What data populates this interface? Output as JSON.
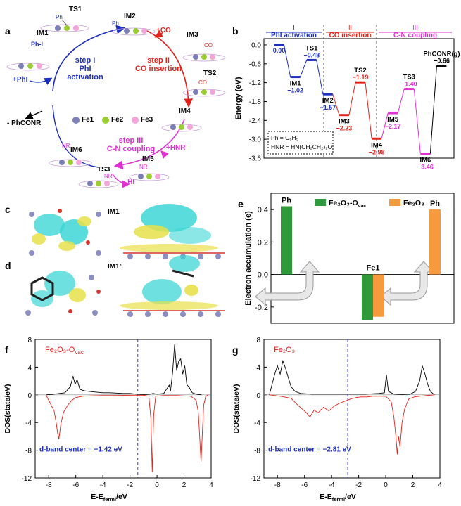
{
  "panel_letters": {
    "a": "a",
    "b": "b",
    "c": "c",
    "d": "d",
    "e": "e",
    "f": "f",
    "g": "g"
  },
  "colors": {
    "blue": "#1c2fbf",
    "red": "#e3231b",
    "magenta": "#e032d2",
    "green": "#2e9a3a",
    "orange": "#f79a3e",
    "cyan": "#3ed6d6",
    "yellow": "#e8e04a"
  },
  "cycle": {
    "states": {
      "ts1": "TS1",
      "im2": "IM2",
      "im1": "IM1",
      "im3": "IM3",
      "ts2": "TS2",
      "im4": "IM4",
      "im5": "IM5",
      "ts3": "TS3",
      "im6": "IM6"
    },
    "step1": {
      "title": "step I",
      "sub": "PhI activation"
    },
    "step2": {
      "title": "step II",
      "sub": "CO insertion"
    },
    "step3": {
      "title": "step III",
      "sub": "C-N coupling"
    },
    "inputs": {
      "co": "+CO",
      "phi": "+PhI",
      "hnr": "+HNR",
      "hi": "- HI",
      "product": "- PhCONR"
    },
    "legend": {
      "fe1": "Fe1",
      "fe2": "Fe2",
      "fe3": "Fe3"
    },
    "atoms": {
      "ph": "Ph",
      "i": "I",
      "phi": "Ph-I",
      "co": "CO",
      "nr": "NR"
    }
  },
  "energy_chart": {
    "chart_data": {
      "type": "line",
      "title": "",
      "ylabel": "Energy (eV)",
      "ylim": [
        -3.6,
        0.2
      ],
      "yticks": [
        "0.0",
        "-0.6",
        "-1.2",
        "-1.8",
        "-2.4",
        "-3.0",
        "-3.6"
      ],
      "states": [
        {
          "name": "",
          "value": 0.0,
          "label": "0.00",
          "color": "#1c2fbf"
        },
        {
          "name": "IM1",
          "value": -1.02,
          "label": "−1.02",
          "color": "#1c2fbf"
        },
        {
          "name": "TS1",
          "value": -0.48,
          "label": "−0.48",
          "color": "#1c2fbf"
        },
        {
          "name": "IM2",
          "value": -1.57,
          "label": "−1.57",
          "color": "#1c2fbf"
        },
        {
          "name": "IM3",
          "value": -2.23,
          "label": "−2.23",
          "color": "#e3231b"
        },
        {
          "name": "TS2",
          "value": -1.19,
          "label": "−1.19",
          "color": "#e3231b"
        },
        {
          "name": "IM4",
          "value": -2.98,
          "label": "−2.98",
          "color": "#e3231b"
        },
        {
          "name": "IM5",
          "value": -2.17,
          "label": "−2.17",
          "color": "#e032d2"
        },
        {
          "name": "TS3",
          "value": -1.4,
          "label": "−1.40",
          "color": "#e032d2"
        },
        {
          "name": "IM6",
          "value": -3.46,
          "label": "−3.46",
          "color": "#e032d2"
        },
        {
          "name": "PhCONR(g)",
          "value": -0.66,
          "label": "−0.66",
          "color": "#000000"
        }
      ],
      "stages": [
        {
          "roman": "I",
          "name": "PhI activation",
          "color": "#1c2fbf"
        },
        {
          "roman": "II",
          "name": "CO insertion",
          "color": "#e3231b"
        },
        {
          "roman": "III",
          "name": "C-N coupling",
          "color": "#e032d2"
        }
      ],
      "notes": [
        "Ph = C₆H₅",
        "HNR = HN(CH₂CH₂)₂O"
      ]
    }
  },
  "charge_panels": {
    "im1": "IM1",
    "im1pp": "IM1”"
  },
  "accum_chart": {
    "chart_data": {
      "type": "bar",
      "ylabel": "Electron accumulation (e)",
      "ylim": [
        -0.3,
        0.5
      ],
      "yticks": [
        "0.4",
        "0.2",
        "0.0",
        "-0.2"
      ],
      "categories": [
        "Ph",
        "Fe1",
        "Ph"
      ],
      "series": [
        {
          "name": "Fe₂O₃-Oᵥₐᶜ",
          "color": "#2e9a3a",
          "values": [
            0.42,
            -0.28,
            null
          ]
        },
        {
          "name": "Fe₂O₃",
          "color": "#f79a3e",
          "values": [
            null,
            -0.26,
            0.4
          ]
        }
      ],
      "legend": {
        "s1": "Fe₂O₃-O",
        "s1sub": "vac",
        "s2": "Fe₂O₃"
      }
    }
  },
  "dos_f": {
    "chart_data": {
      "type": "line",
      "title": "Fe₂O₃-O",
      "title_sub": "vac",
      "xlabel": "E-E",
      "xlabel_sub": "fermi",
      "xlabel_unit": "/eV",
      "ylabel": "DOS(state/eV)",
      "xlim": [
        -9,
        4
      ],
      "ylim": [
        -12,
        8
      ],
      "xticks": [
        "-8",
        "-6",
        "-4",
        "-2",
        "0",
        "2",
        "4"
      ],
      "yticks": [
        "8",
        "4",
        "0",
        "-4",
        "-8",
        "-12"
      ],
      "d_band_center": -1.42,
      "annotation": "d-band center = −1.42 eV",
      "spin_up": [
        [
          -8.2,
          0
        ],
        [
          -7.6,
          0.1
        ],
        [
          -6.8,
          0.3
        ],
        [
          -6.4,
          1.2
        ],
        [
          -6.2,
          2.7
        ],
        [
          -6.05,
          1.5
        ],
        [
          -5.9,
          2.2
        ],
        [
          -5.7,
          0.8
        ],
        [
          -5.4,
          0.6
        ],
        [
          -5,
          0.5
        ],
        [
          -4.5,
          0.4
        ],
        [
          -4,
          0.3
        ],
        [
          -3.5,
          0.3
        ],
        [
          -3,
          0.25
        ],
        [
          -2.5,
          0.2
        ],
        [
          -2,
          0.2
        ],
        [
          -1.5,
          0.1
        ],
        [
          -1,
          0.05
        ],
        [
          -0.5,
          0.1
        ],
        [
          -0.3,
          0.2
        ],
        [
          0,
          0.1
        ],
        [
          0.5,
          0.2
        ],
        [
          0.9,
          1.4
        ],
        [
          1.0,
          0.6
        ],
        [
          1.15,
          3.2
        ],
        [
          1.3,
          7.3
        ],
        [
          1.45,
          3.5
        ],
        [
          1.6,
          4.8
        ],
        [
          1.75,
          5.2
        ],
        [
          1.9,
          3.0
        ],
        [
          2.05,
          4.2
        ],
        [
          2.2,
          1.5
        ],
        [
          2.4,
          1.0
        ],
        [
          2.6,
          0.3
        ],
        [
          2.9,
          0.1
        ],
        [
          3.3,
          0
        ]
      ],
      "spin_down": [
        [
          -8.2,
          0
        ],
        [
          -7.9,
          -1.2
        ],
        [
          -7.6,
          -2.3
        ],
        [
          -7.45,
          -4.0
        ],
        [
          -7.35,
          -5.4
        ],
        [
          -7.25,
          -6.4
        ],
        [
          -7.1,
          -4.2
        ],
        [
          -6.9,
          -2.5
        ],
        [
          -6.6,
          -1.5
        ],
        [
          -6.3,
          -0.8
        ],
        [
          -6.0,
          -0.4
        ],
        [
          -5.5,
          -0.2
        ],
        [
          -5,
          -0.15
        ],
        [
          -4,
          -0.1
        ],
        [
          -3,
          -0.1
        ],
        [
          -2,
          -0.05
        ],
        [
          -1,
          -0.05
        ],
        [
          -0.6,
          -0.2
        ],
        [
          -0.45,
          -3.5
        ],
        [
          -0.35,
          -11.2
        ],
        [
          -0.25,
          -3.0
        ],
        [
          -0.1,
          -0.2
        ],
        [
          0.5,
          -0.1
        ],
        [
          1.5,
          -0.1
        ],
        [
          2.5,
          -0.2
        ],
        [
          2.9,
          -0.8
        ],
        [
          3.05,
          -2.5
        ],
        [
          3.15,
          -6.0
        ],
        [
          3.25,
          -9.8
        ],
        [
          3.35,
          -5.5
        ],
        [
          3.45,
          -1.5
        ],
        [
          3.6,
          -0.2
        ],
        [
          3.8,
          0
        ]
      ]
    }
  },
  "dos_g": {
    "chart_data": {
      "type": "line",
      "title": "Fe₂O₃",
      "xlabel": "E-E",
      "xlabel_sub": "fermi",
      "xlabel_unit": "/eV",
      "ylabel": "DOS(state/eV)",
      "xlim": [
        -9,
        4
      ],
      "ylim": [
        -12,
        8
      ],
      "xticks": [
        "-8",
        "-6",
        "-4",
        "-2",
        "0",
        "2",
        "4"
      ],
      "yticks": [
        "8",
        "4",
        "0",
        "-4",
        "-8",
        "-12"
      ],
      "d_band_center": -2.81,
      "annotation": "d-band center = −2.81 eV",
      "spin_up": [
        [
          -8.6,
          0
        ],
        [
          -8.4,
          1.5
        ],
        [
          -8.2,
          3.0
        ],
        [
          -8.0,
          4.2
        ],
        [
          -7.8,
          3.0
        ],
        [
          -7.6,
          4.9
        ],
        [
          -7.4,
          3.8
        ],
        [
          -7.2,
          2.5
        ],
        [
          -7.0,
          1.2
        ],
        [
          -6.7,
          0.5
        ],
        [
          -6.3,
          0.2
        ],
        [
          -5.5,
          0.1
        ],
        [
          -4.5,
          0.1
        ],
        [
          -3.5,
          0.1
        ],
        [
          -2.5,
          0.1
        ],
        [
          -1.5,
          0.1
        ],
        [
          -0.5,
          0.2
        ],
        [
          -0.1,
          0.3
        ],
        [
          0.05,
          2.9
        ],
        [
          0.2,
          0.5
        ],
        [
          0.6,
          0.1
        ],
        [
          1.2,
          0.05
        ],
        [
          1.8,
          0.1
        ],
        [
          2.2,
          0.5
        ],
        [
          2.5,
          2.0
        ],
        [
          2.7,
          4.2
        ],
        [
          2.9,
          3.0
        ],
        [
          3.1,
          1.5
        ],
        [
          3.3,
          0.5
        ],
        [
          3.6,
          0
        ]
      ],
      "spin_down": [
        [
          -8.6,
          0
        ],
        [
          -8.2,
          -0.1
        ],
        [
          -7.8,
          -0.2
        ],
        [
          -7.5,
          -0.3
        ],
        [
          -7.0,
          -0.5
        ],
        [
          -6.6,
          -1.3
        ],
        [
          -6.2,
          -2.0
        ],
        [
          -5.9,
          -2.5
        ],
        [
          -5.6,
          -3.2
        ],
        [
          -5.3,
          -2.2
        ],
        [
          -5.0,
          -2.6
        ],
        [
          -4.6,
          -1.8
        ],
        [
          -4.2,
          -2.3
        ],
        [
          -3.8,
          -1.6
        ],
        [
          -3.4,
          -1.2
        ],
        [
          -3.0,
          -0.9
        ],
        [
          -2.6,
          -0.6
        ],
        [
          -2.2,
          -0.4
        ],
        [
          -1.8,
          -0.3
        ],
        [
          -1.4,
          -0.3
        ],
        [
          -1.0,
          -0.2
        ],
        [
          -0.5,
          -0.2
        ],
        [
          0,
          -0.2
        ],
        [
          0.4,
          -1.0
        ],
        [
          0.6,
          -3.2
        ],
        [
          0.75,
          -6.0
        ],
        [
          0.85,
          -8.6
        ],
        [
          0.95,
          -6.0
        ],
        [
          1.05,
          -7.5
        ],
        [
          1.2,
          -4.0
        ],
        [
          1.4,
          -2.0
        ],
        [
          1.7,
          -0.6
        ],
        [
          2.1,
          -0.3
        ],
        [
          2.5,
          -0.2
        ],
        [
          3.0,
          -0.1
        ],
        [
          3.6,
          0
        ]
      ]
    }
  }
}
